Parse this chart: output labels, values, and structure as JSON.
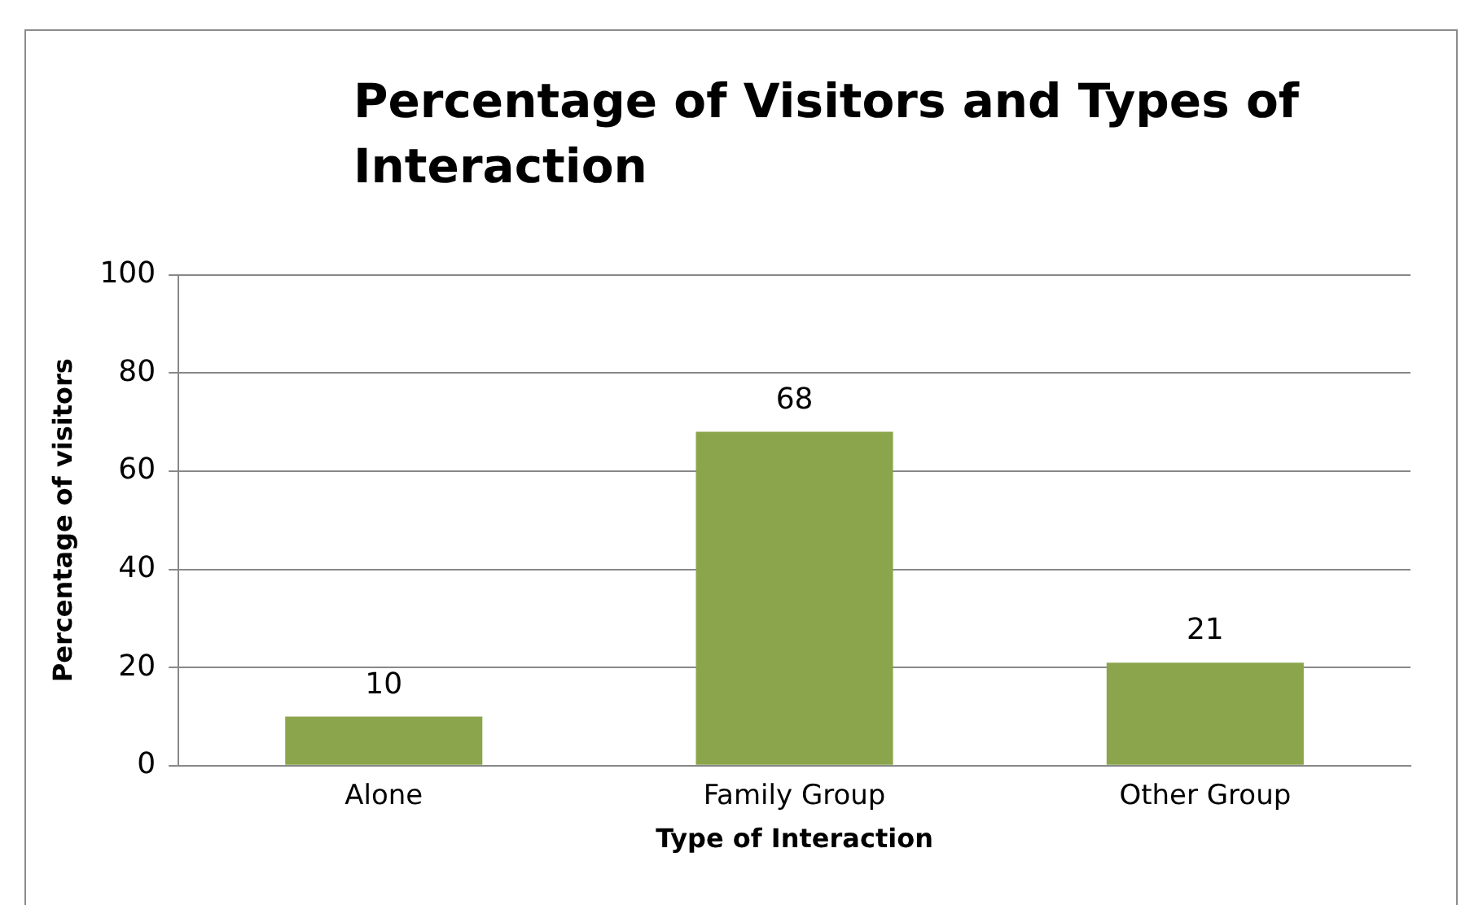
{
  "chart_data": {
    "type": "bar",
    "title": "Percentage of Visitors and Types of Interaction",
    "xlabel": "Type of Interaction",
    "ylabel": "Percentage of visitors",
    "categories": [
      "Alone",
      "Family Group",
      "Other Group"
    ],
    "values": [
      10,
      68,
      21
    ],
    "color": "#8ba54c",
    "ylim": [
      0,
      100
    ],
    "yticks": [
      0,
      20,
      40,
      60,
      80,
      100
    ],
    "grid": "y",
    "data_labels": true,
    "legend": false
  }
}
